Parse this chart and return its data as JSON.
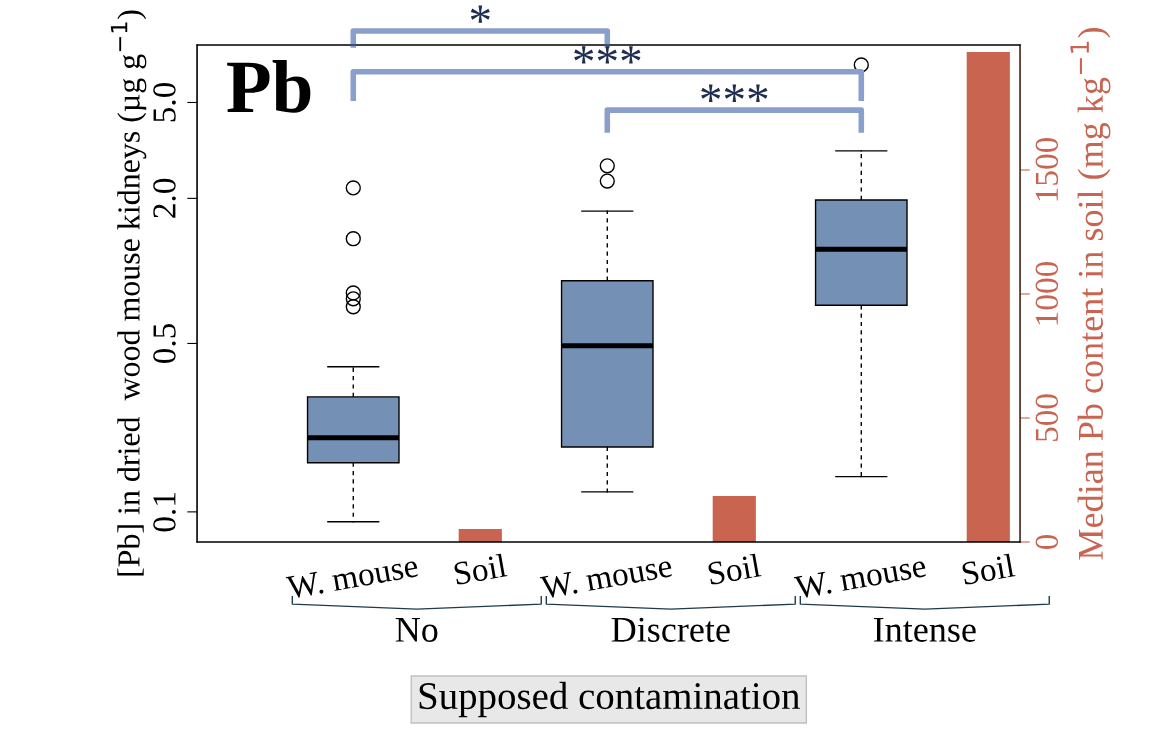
{
  "chart_data": {
    "type": "box",
    "title": "Pb",
    "categories": [
      "W. mouse",
      "Soil",
      "W. mouse",
      "Soil",
      "W. mouse",
      "Soil"
    ],
    "xlabel": "Supposed contamination",
    "ylabel": "[Pb] in dried  wood mouse kidneys (µg g$^{−1}$)",
    "y2label": "Median Pb content in soil (mg kg$^{−1}$)",
    "series": [
      {
        "color": "#7491b5",
        "boxes": [
          {
            "low": 0.091,
            "q1": 0.16,
            "median": 0.203,
            "q3": 0.3,
            "high": 0.4,
            "outliers": [
              2.21,
              1.36,
              0.81,
              0.766,
              0.71
            ]
          },
          null,
          {
            "low": 0.121,
            "q1": 0.186,
            "median": 0.489,
            "q3": 0.91,
            "high": 1.77,
            "outliers": [
              2.73,
              2.36
            ]
          },
          null,
          {
            "low": 0.14,
            "q1": 0.72,
            "median": 1.23,
            "q3": 1.97,
            "high": 3.15,
            "outliers": [
              7.16
            ]
          },
          null
        ]
      },
      {
        "type": "bar",
        "axis": "y2",
        "color": "#c86450",
        "values": [
          null,
          52,
          null,
          185,
          null,
          1976
        ]
      }
    ],
    "log": "y",
    "ylim": [
      0.075,
      8.66
    ],
    "yticks": [
      0.1,
      0.5,
      {
        "value": 2,
        "label": "2.0"
      },
      {
        "value": 5,
        "label": "5.0"
      }
    ],
    "y2lim": [
      0,
      2004
    ],
    "y2ticks": [
      0,
      500,
      1000,
      1500
    ],
    "annotations": [
      "*",
      "***",
      "***",
      "No",
      "Discrete",
      "Intense"
    ],
    "grid": false,
    "legend": false
  }
}
